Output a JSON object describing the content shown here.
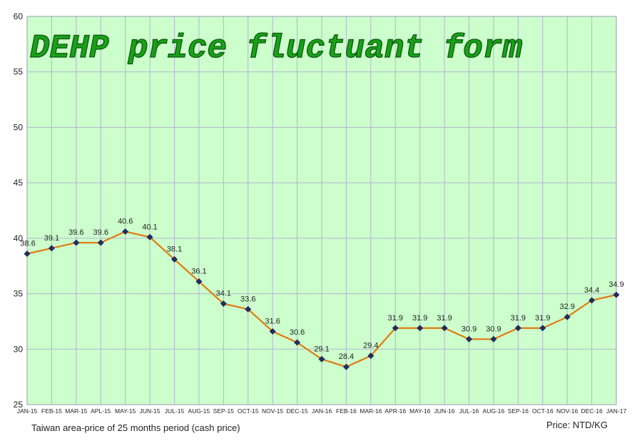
{
  "chart_data": {
    "type": "line",
    "title": "DEHP price fluctuant form",
    "categories": [
      "JAN-15",
      "FEB-15",
      "MAR-15",
      "APL-15",
      "MAY-15",
      "JUN-15",
      "JUL-15",
      "AUG-15",
      "SEP-15",
      "OCT-15",
      "NOV-15",
      "DEC-15",
      "JAN-16",
      "FEB-16",
      "MAR-16",
      "APR-16",
      "MAY-16",
      "JUN-16",
      "JUL-16",
      "AUG-16",
      "SEP-16",
      "OCT-16",
      "NOV-16",
      "DEC-16",
      "JAN-17"
    ],
    "values": [
      38.6,
      39.1,
      39.6,
      39.6,
      40.6,
      40.1,
      38.1,
      36.1,
      34.1,
      33.6,
      31.6,
      30.6,
      29.1,
      28.4,
      29.4,
      31.9,
      31.9,
      31.9,
      30.9,
      30.9,
      31.9,
      31.9,
      32.9,
      34.4,
      34.9
    ],
    "data_labels": [
      "38.6",
      "39.1",
      "39.6",
      "39.6",
      "40.6",
      "40.1",
      "38.1",
      "36.1",
      "34.1",
      "33.6",
      "31.6",
      "30.6",
      "29.1",
      "28.4",
      "29.4",
      "31.9",
      "31.9",
      "31.9",
      "30.9",
      "30.9",
      "31.9",
      "31.9",
      "32.9",
      "34.4",
      "34.9"
    ],
    "ylim": [
      25,
      60
    ],
    "yticks": [
      "25",
      "30",
      "35",
      "40",
      "45",
      "50",
      "55",
      "60"
    ],
    "xlabel": "Taiwan area-price of 25 months period (cash price)",
    "ylabel": "Price: NTD/KG",
    "grid": true,
    "colors": {
      "plot_background": "#ccffcc",
      "grid": "#b4b4d2",
      "line": "#e07b10",
      "marker": "#1f2f6b",
      "title_fill": "#1aa01a",
      "title_stroke": "#0b5a0b"
    }
  }
}
